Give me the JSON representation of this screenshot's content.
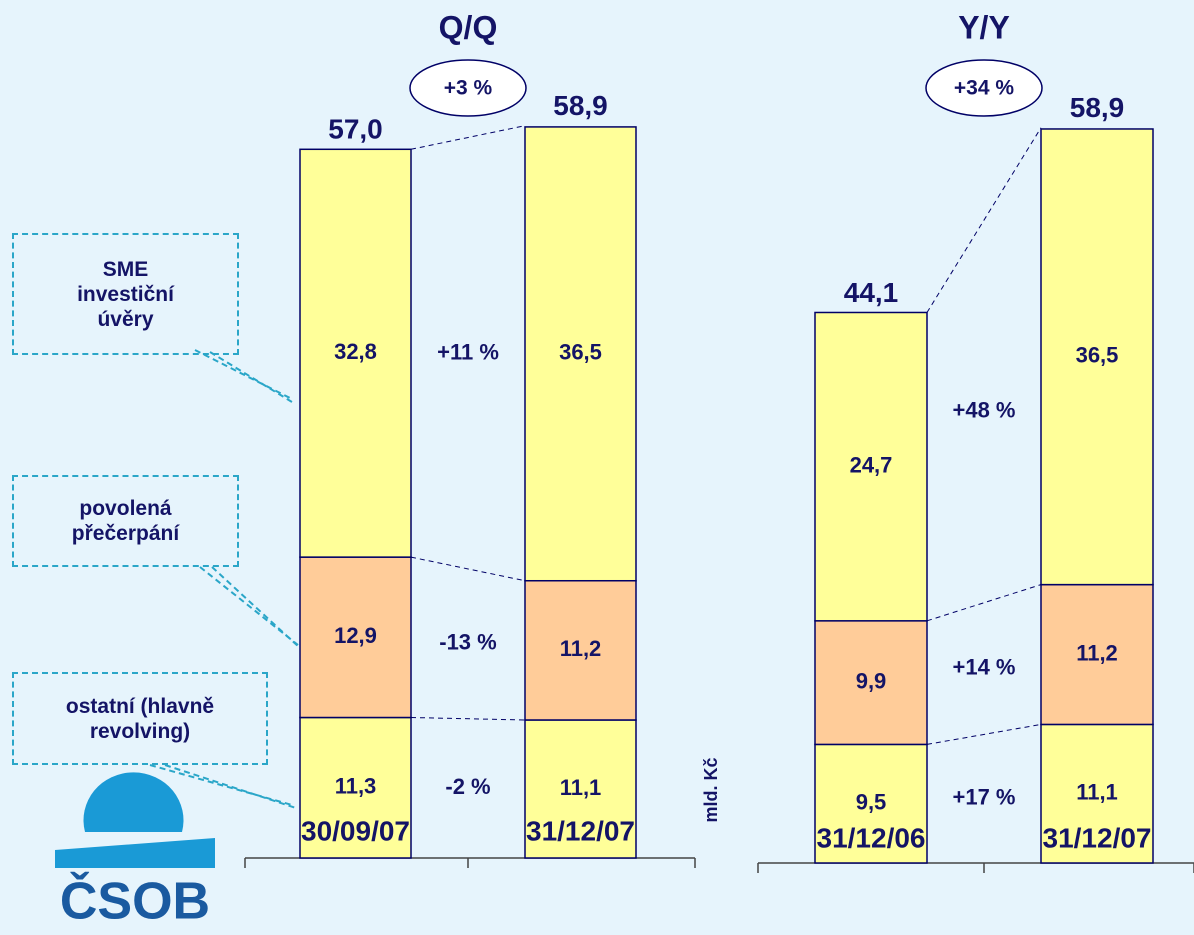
{
  "logo": "ČSOB",
  "chart_data": [
    {
      "type": "bar",
      "stacked": true,
      "title": "Q/Q",
      "badge": "+3 %",
      "categories": [
        "30/09/07",
        "31/12/07"
      ],
      "ylim": [
        0,
        60
      ],
      "totals": [
        57.0,
        58.9
      ],
      "total_labels": [
        "57,0",
        "58,9"
      ],
      "series": [
        {
          "name": "ostatní (hlavně revolving)",
          "color": "#ffff99",
          "values": [
            11.3,
            11.1
          ],
          "value_labels": [
            "11,3",
            "11,1"
          ],
          "change_label": "-2 %"
        },
        {
          "name": "povolená přečerpání",
          "color": "#ffcc99",
          "values": [
            12.9,
            11.2
          ],
          "value_labels": [
            "12,9",
            "11,2"
          ],
          "change_label": "-13 %"
        },
        {
          "name": "SME investiční úvěry",
          "color": "#ffff99",
          "values": [
            32.8,
            36.5
          ],
          "value_labels": [
            "32,8",
            "36,5"
          ],
          "change_label": "+11 %"
        }
      ]
    },
    {
      "type": "bar",
      "stacked": true,
      "title": "Y/Y",
      "badge": "+34 %",
      "categories": [
        "31/12/06",
        "31/12/07"
      ],
      "ylabel": "mld. Kč",
      "ylim": [
        0,
        60
      ],
      "totals": [
        44.1,
        58.9
      ],
      "total_labels": [
        "44,1",
        "58,9"
      ],
      "series": [
        {
          "color": "#ffff99",
          "values": [
            9.5,
            11.1
          ],
          "value_labels": [
            "9,5",
            "11,1"
          ],
          "change_label": "+17 %"
        },
        {
          "color": "#ffcc99",
          "values": [
            9.9,
            11.2
          ],
          "value_labels": [
            "9,9",
            "11,2"
          ],
          "change_label": "+14 %"
        },
        {
          "color": "#ffff99",
          "values": [
            24.7,
            36.5
          ],
          "value_labels": [
            "24,7",
            "36,5"
          ],
          "change_label": "+48 %"
        }
      ]
    }
  ]
}
